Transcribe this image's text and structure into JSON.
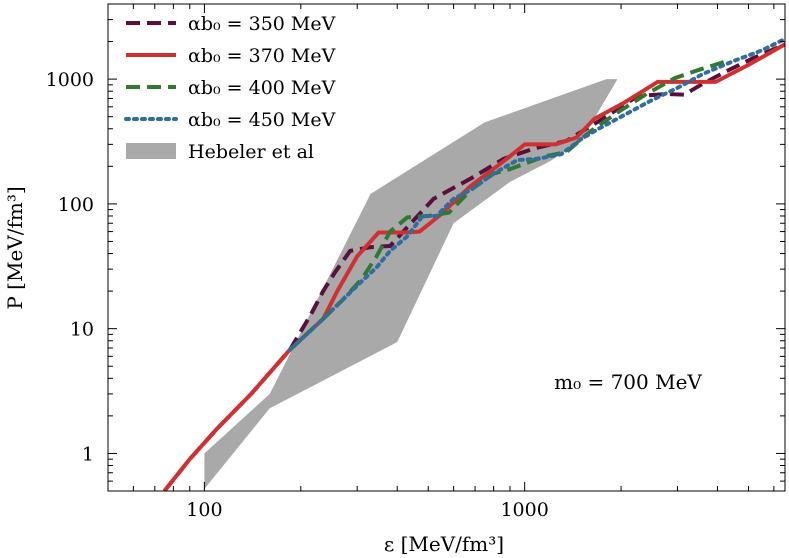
{
  "chart_data": {
    "type": "line",
    "title": "",
    "xlabel": "ε [MeV/fm³]",
    "ylabel": "P [MeV/fm³]",
    "xscale": "log",
    "yscale": "log",
    "xlim": [
      50,
      6500
    ],
    "ylim": [
      0.5,
      4000
    ],
    "x_ticks": [
      100,
      1000
    ],
    "x_tick_labels": [
      "100",
      "1000"
    ],
    "y_ticks": [
      1,
      10,
      100,
      1000
    ],
    "y_tick_labels": [
      "1",
      "10",
      "100",
      "1000"
    ],
    "legend_position": "top-left",
    "annotation": "m₀ = 700 MeV",
    "series": [
      {
        "name": "αb₀ = 350 MeV",
        "color": "#5a0f3c",
        "style": "dashed",
        "x": [
          75,
          90,
          110,
          140,
          185,
          215,
          235,
          255,
          285,
          330,
          380,
          430,
          520,
          680,
          860,
          1080,
          1350,
          1750,
          2250,
          2750,
          3150,
          3550,
          4250,
          5100,
          6500
        ],
        "y": [
          0.5,
          0.9,
          1.6,
          3.0,
          6.8,
          13,
          20,
          28,
          42,
          45,
          46,
          65,
          110,
          160,
          230,
          280,
          320,
          480,
          730,
          760,
          750,
          900,
          1150,
          1450,
          1900
        ]
      },
      {
        "name": "αb₀ = 370 MeV",
        "color": "#d23030",
        "style": "solid",
        "x": [
          75,
          90,
          110,
          140,
          185,
          235,
          260,
          300,
          350,
          420,
          470,
          540,
          680,
          860,
          1000,
          1250,
          1450,
          1650,
          2050,
          2600,
          3100,
          3950,
          5000,
          6500
        ],
        "y": [
          0.5,
          0.9,
          1.6,
          3.0,
          6.8,
          12,
          20,
          38,
          59,
          59,
          60,
          80,
          140,
          220,
          300,
          300,
          340,
          480,
          650,
          950,
          950,
          950,
          1300,
          1900
        ]
      },
      {
        "name": "αb₀ = 400 MeV",
        "color": "#2f7a2f",
        "style": "dashed",
        "x": [
          185,
          235,
          270,
          310,
          345,
          380,
          430,
          500,
          580,
          680,
          800,
          900,
          1000,
          1150,
          1350,
          1600,
          1950,
          2400,
          2950,
          3550,
          4300
        ],
        "y": [
          6.8,
          12,
          17,
          25,
          38,
          60,
          78,
          80,
          85,
          130,
          175,
          190,
          210,
          240,
          260,
          380,
          540,
          760,
          1020,
          1200,
          1400
        ]
      },
      {
        "name": "αb₀ = 450 MeV",
        "color": "#2f6e9e",
        "style": "dotted",
        "x": [
          185,
          235,
          270,
          310,
          345,
          380,
          430,
          480,
          530,
          600,
          680,
          800,
          950,
          1100,
          1300,
          1500,
          1700,
          2000,
          2500,
          3000,
          3600,
          4500,
          5500,
          6500
        ],
        "y": [
          6.8,
          12,
          17,
          24,
          31,
          42,
          55,
          80,
          80,
          110,
          130,
          175,
          225,
          230,
          250,
          330,
          400,
          500,
          680,
          850,
          1100,
          1400,
          1700,
          2100
        ]
      }
    ],
    "bands": [
      {
        "name": "Hebeler et al",
        "color": "#a9a9a9",
        "x_upper": [
          100,
          160,
          330,
          750,
          1800,
          1950
        ],
        "y_upper": [
          1.0,
          3.0,
          120,
          450,
          1000,
          1000
        ],
        "x_lower": [
          100,
          160,
          400,
          600,
          900,
          1200,
          1500,
          1950
        ],
        "y_lower": [
          0.52,
          2.3,
          7.8,
          70,
          150,
          220,
          320,
          1000
        ]
      }
    ]
  }
}
